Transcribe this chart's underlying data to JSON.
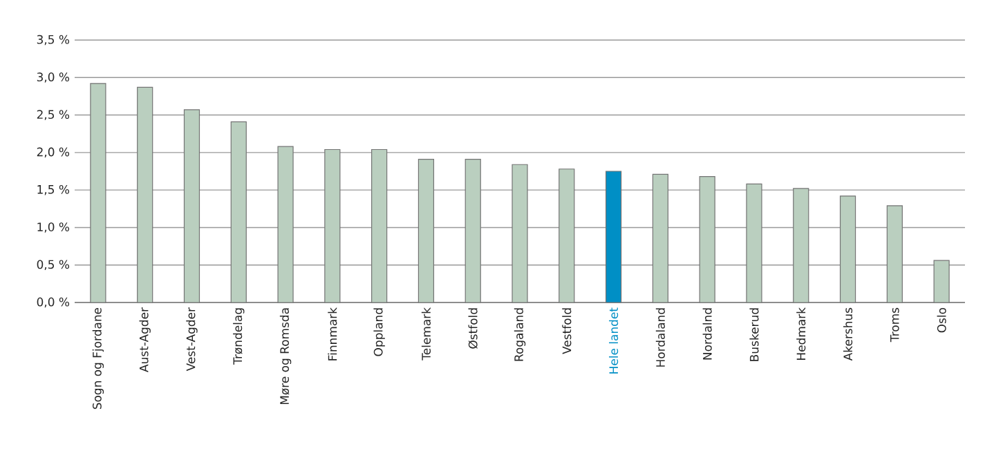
{
  "chart_data": {
    "type": "bar",
    "categories": [
      "Sogn og Fjordane",
      "Aust-Agder",
      "Vest-Agder",
      "Trøndelag",
      "Møre og Romsda",
      "Finnmark",
      "Oppland",
      "Telemark",
      "Østfold",
      "Rogaland",
      "Vestfold",
      "Hele landet",
      "Hordaland",
      "Nordalnd",
      "Buskerud",
      "Hedmark",
      "Akershus",
      "Troms",
      "Oslo"
    ],
    "values": [
      2.92,
      2.87,
      2.57,
      2.41,
      2.08,
      2.04,
      2.04,
      1.91,
      1.91,
      1.84,
      1.78,
      1.75,
      1.71,
      1.68,
      1.58,
      1.52,
      1.42,
      1.29,
      0.56
    ],
    "colors": [
      "#bacfbf",
      "#bacfbf",
      "#bacfbf",
      "#bacfbf",
      "#bacfbf",
      "#bacfbf",
      "#bacfbf",
      "#bacfbf",
      "#bacfbf",
      "#bacfbf",
      "#bacfbf",
      "#008fc5",
      "#bacfbf",
      "#bacfbf",
      "#bacfbf",
      "#bacfbf",
      "#bacfbf",
      "#bacfbf",
      "#bacfbf"
    ],
    "ylim": [
      0,
      3.5
    ],
    "yticks": [
      {
        "value": 0,
        "label": "0,0 %"
      },
      {
        "value": 0.5,
        "label": "0,5 %"
      },
      {
        "value": 1,
        "label": "1,0 %"
      },
      {
        "value": 1.5,
        "label": "1,5 %"
      },
      {
        "value": 2,
        "label": "2,0 %"
      },
      {
        "value": 2.5,
        "label": "2,5 %"
      },
      {
        "value": 3,
        "label": "3,0 %"
      },
      {
        "value": 3.5,
        "label": "3,5 %"
      }
    ],
    "grid": "y"
  }
}
